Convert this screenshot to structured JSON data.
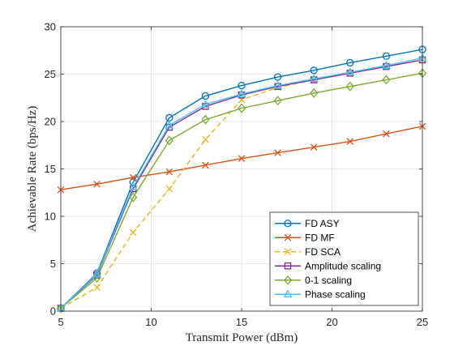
{
  "chart_data": {
    "type": "line",
    "xlabel": "Transmit Power (dBm)",
    "ylabel": "Achievable Rate (bps/Hz)",
    "xlim": [
      5,
      25
    ],
    "ylim": [
      0,
      30
    ],
    "xticks": [
      "5",
      "10",
      "15",
      "20",
      "25"
    ],
    "yticks": [
      "0",
      "5",
      "10",
      "15",
      "20",
      "25",
      "30"
    ],
    "grid": true,
    "legend_position": "bottom-right",
    "series": [
      {
        "name": "FD ASY",
        "color": "#0072BD",
        "marker": "circle",
        "dash": "solid",
        "x": [
          5,
          7,
          9,
          11,
          13,
          15,
          17,
          19,
          21,
          23,
          25
        ],
        "y": [
          0.3,
          4.0,
          13.6,
          20.4,
          22.7,
          23.8,
          24.7,
          25.4,
          26.2,
          26.9,
          27.6
        ]
      },
      {
        "name": "FD MF",
        "color": "#D95319",
        "marker": "x",
        "dash": "solid",
        "x": [
          5,
          7,
          9,
          11,
          13,
          15,
          17,
          19,
          21,
          23,
          25
        ],
        "y": [
          12.8,
          13.4,
          14.1,
          14.7,
          15.4,
          16.1,
          16.7,
          17.3,
          17.9,
          18.7,
          19.5
        ]
      },
      {
        "name": "FD SCA",
        "color": "#EDB120",
        "marker": "x",
        "dash": "dashed",
        "x": [
          5,
          7,
          9,
          11,
          13,
          15,
          17,
          19,
          21,
          23,
          25
        ],
        "y": [
          0.3,
          2.5,
          8.3,
          12.9,
          18.1,
          22.3,
          23.6,
          24.4,
          25.1,
          25.8,
          26.5
        ]
      },
      {
        "name": "Amplitude scaling",
        "color": "#7E2F8E",
        "marker": "square",
        "dash": "solid",
        "x": [
          5,
          7,
          9,
          11,
          13,
          15,
          17,
          19,
          21,
          23,
          25
        ],
        "y": [
          0.3,
          3.8,
          12.9,
          19.4,
          21.6,
          22.8,
          23.7,
          24.4,
          25.1,
          25.8,
          26.5
        ]
      },
      {
        "name": "0-1 scaling",
        "color": "#77AC30",
        "marker": "diamond",
        "dash": "solid",
        "x": [
          5,
          7,
          9,
          11,
          13,
          15,
          17,
          19,
          21,
          23,
          25
        ],
        "y": [
          0.3,
          3.5,
          12.0,
          18.0,
          20.2,
          21.4,
          22.2,
          23.0,
          23.7,
          24.4,
          25.1
        ]
      },
      {
        "name": "Phase scaling",
        "color": "#4DBEEE",
        "marker": "triangle",
        "dash": "solid",
        "x": [
          5,
          7,
          9,
          11,
          13,
          15,
          17,
          19,
          21,
          23,
          25
        ],
        "y": [
          0.3,
          3.9,
          13.1,
          19.6,
          21.8,
          22.9,
          23.8,
          24.5,
          25.2,
          25.9,
          26.7
        ]
      }
    ]
  }
}
